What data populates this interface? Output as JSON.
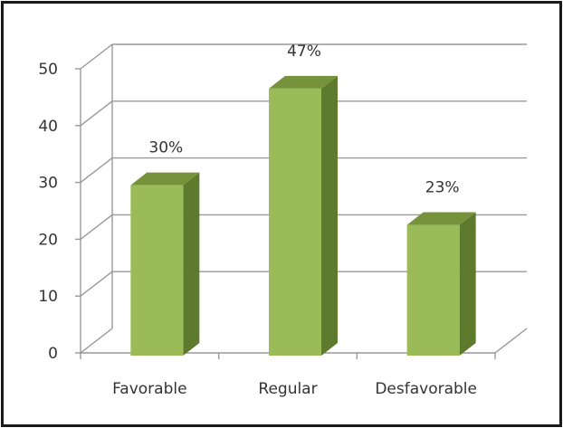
{
  "chart_data": {
    "type": "bar",
    "categories": [
      "Favorable",
      "Regular",
      "Desfavorable"
    ],
    "values": [
      30,
      47,
      23
    ],
    "data_labels": [
      "30%",
      "47%",
      "23%"
    ],
    "y_ticks": [
      "0",
      "10",
      "20",
      "30",
      "40",
      "50"
    ],
    "ylim": [
      0,
      50
    ],
    "grid": true,
    "legend": "none",
    "style": "3d-column",
    "colors": {
      "front": "#9bbb59",
      "side": "#5e7a2c",
      "top": "#76933c",
      "grid": "#999999"
    }
  }
}
